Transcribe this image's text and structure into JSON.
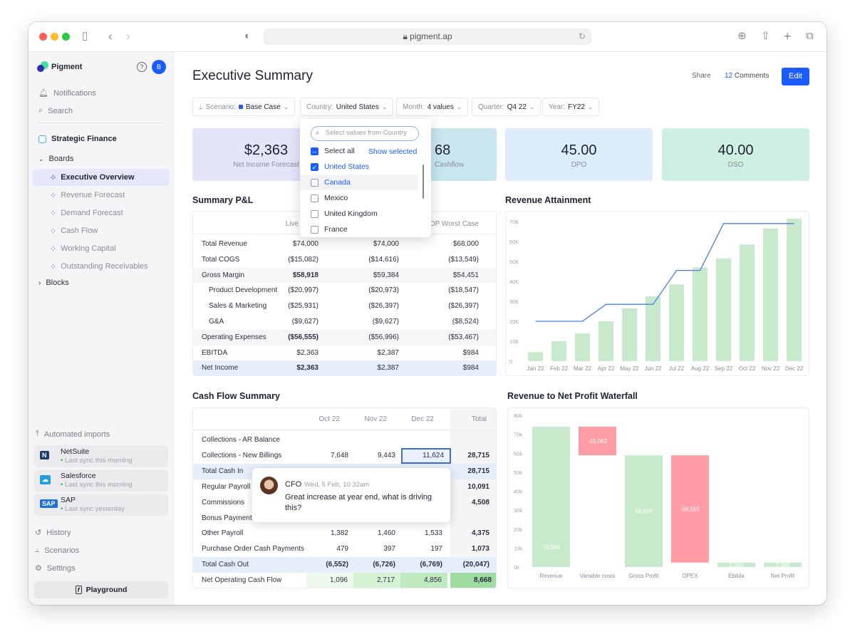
{
  "browser": {
    "url": "pigment.ap"
  },
  "sidebar": {
    "app_name": "Pigment",
    "avatar_initial": "B",
    "notifications": "Notifications",
    "search": "Search",
    "workspace": "Strategic Finance",
    "boards_label": "Boards",
    "boards": [
      "Executive Overview",
      "Revenue Forecast",
      "Demand Forecast",
      "Cash Flow",
      "Working Capital",
      "Outstanding Receivables"
    ],
    "blocks_label": "Blocks",
    "imports_label": "Automated imports",
    "imports": [
      {
        "name": "NetSuite",
        "status": "Last sync this morning"
      },
      {
        "name": "Salesforce",
        "status": "Last sync this morning"
      },
      {
        "name": "SAP",
        "status": "Last sync yesterday"
      }
    ],
    "history": "History",
    "scenarios": "Scenarios",
    "settings": "Settings",
    "playground": "Playground"
  },
  "header": {
    "title": "Executive Summary",
    "share": "Share",
    "comments_count": "12",
    "comments_label": "Comments",
    "edit": "Edit"
  },
  "filters": [
    {
      "label": "Scenario:",
      "value": "Base Case"
    },
    {
      "label": "Country:",
      "value": "United States"
    },
    {
      "label": "Month:",
      "value": "4 values"
    },
    {
      "label": "Quarter:",
      "value": "Q4 22"
    },
    {
      "label": "Year:",
      "value": "FY22"
    }
  ],
  "kpis": [
    {
      "value": "$2,363",
      "label": "Net Income Forecast",
      "color": "#e4e4fb"
    },
    {
      "value": "68",
      "label": "Cashflow",
      "color": "#c9e6ee"
    },
    {
      "value": "45.00",
      "label": "DPO",
      "color": "#dcecfc"
    },
    {
      "value": "40.00",
      "label": "DSO",
      "color": "#cdf0e3"
    }
  ],
  "country_dropdown": {
    "placeholder": "Select values from Country",
    "select_all": "Select all",
    "show_selected": "Show selected",
    "options": [
      {
        "label": "United States",
        "checked": true
      },
      {
        "label": "Canada",
        "checked": false
      },
      {
        "label": "Mexico",
        "checked": false
      },
      {
        "label": "United Kingdom",
        "checked": false
      },
      {
        "label": "France",
        "checked": false
      }
    ]
  },
  "pnl": {
    "title": "Summary P&L",
    "columns": [
      "Live",
      "",
      "AOP Worst Case"
    ],
    "rows": [
      {
        "label": "Total Revenue",
        "values": [
          "$74,000",
          "$74,000",
          "$68,000"
        ],
        "style": ""
      },
      {
        "label": "Total COGS",
        "values": [
          "($15,082)",
          "($14,616)",
          "($13,549)"
        ],
        "style": ""
      },
      {
        "label": "Gross Margin",
        "values": [
          "$58,918",
          "$59,384",
          "$54,451"
        ],
        "style": "sub"
      },
      {
        "label": "Product Development",
        "values": [
          "($20,997)",
          "($20,973)",
          "($18,547)"
        ],
        "style": "indent"
      },
      {
        "label": "Sales & Marketing",
        "values": [
          "($25,931)",
          "($26,397)",
          "($26,397)"
        ],
        "style": "indent"
      },
      {
        "label": "G&A",
        "values": [
          "($9,627)",
          "($9,627)",
          "($8,524)"
        ],
        "style": "indent"
      },
      {
        "label": "Operating Expenses",
        "values": [
          "($56,555)",
          "($56,996)",
          "($53,467)"
        ],
        "style": "sub"
      },
      {
        "label": "EBITDA",
        "values": [
          "$2,363",
          "$2,387",
          "$984"
        ],
        "style": ""
      },
      {
        "label": "Net Income",
        "values": [
          "$2,363",
          "$2,387",
          "$984"
        ],
        "style": "total"
      }
    ]
  },
  "cashflow": {
    "title": "Cash Flow Summary",
    "columns": [
      "Oct 22",
      "Nov 22",
      "Dec 22",
      "Total"
    ],
    "rows": [
      {
        "label": "Collections - AR Balance",
        "values": [
          "",
          "",
          "",
          ""
        ],
        "style": ""
      },
      {
        "label": "Collections - New Billings",
        "values": [
          "7,648",
          "9,443",
          "11,624",
          "28,715"
        ],
        "style": ""
      },
      {
        "label": "Total Cash In",
        "values": [
          "",
          "",
          "",
          "28,715"
        ],
        "style": "total"
      },
      {
        "label": "Regular Payroll",
        "values": [
          "",
          "",
          "",
          "10,091"
        ],
        "style": ""
      },
      {
        "label": "Commissions",
        "values": [
          "",
          "",
          "",
          "4,508"
        ],
        "style": ""
      },
      {
        "label": "Bonus Payment",
        "values": [
          "",
          "",
          "",
          ""
        ],
        "style": ""
      },
      {
        "label": "Other Payroll",
        "values": [
          "1,382",
          "1,460",
          "1,533",
          "4,375"
        ],
        "style": ""
      },
      {
        "label": "Purchase Order Cash Payments",
        "values": [
          "479",
          "397",
          "197",
          "1,073"
        ],
        "style": ""
      },
      {
        "label": "Total Cash Out",
        "values": [
          "(6,552)",
          "(6,726)",
          "(6,769)",
          "(20,047)"
        ],
        "style": "total"
      },
      {
        "label": "Net Operating Cash Flow",
        "values": [
          "1,096",
          "2,717",
          "4,856",
          "8,668"
        ],
        "style": "net"
      }
    ]
  },
  "comment": {
    "author": "CFO",
    "time": "Wed, 5 Feb, 10:32am",
    "text": "Great increase at year end, what is driving this?"
  },
  "chart_data": [
    {
      "type": "bar",
      "title": "Revenue Attainment",
      "categories": [
        "Jan 22",
        "Feb 22",
        "Mar 22",
        "Apr 22",
        "May 22",
        "Jun 22",
        "Jul 22",
        "Aug 22",
        "Sep 22",
        "Oct 22",
        "Nov 22",
        "Dec 22"
      ],
      "series": [
        {
          "name": "Revenue",
          "type": "bar",
          "color": "#c9e9cc",
          "values": [
            4500,
            10000,
            14000,
            20000,
            26500,
            32500,
            38500,
            47000,
            51500,
            58500,
            66500,
            71500
          ]
        },
        {
          "name": "Target",
          "type": "line",
          "color": "#4a7fdc",
          "values": [
            20000,
            20000,
            20000,
            28500,
            28500,
            28500,
            45500,
            45500,
            69000,
            69000,
            69000,
            69000
          ]
        }
      ],
      "yticks": [
        "0",
        "10K",
        "20K",
        "30K",
        "40K",
        "50K",
        "60K",
        "70K"
      ],
      "ylim": [
        0,
        70000
      ]
    },
    {
      "type": "waterfall",
      "title": "Revenue to Net Profit Waterfall",
      "categories": [
        "Revenue",
        "Variable costs",
        "Gross Profit",
        "OPEX",
        "Ebitda",
        "Net Profit"
      ],
      "values": [
        74000,
        -15082,
        58918,
        -56555,
        2363,
        2363
      ],
      "labels": [
        "74,000",
        "-15,082",
        "58,918",
        "-56,555",
        "2,363",
        "2,363"
      ],
      "kinds": [
        "total",
        "delta",
        "total",
        "delta",
        "total",
        "total"
      ],
      "yticks": [
        "0k",
        "10k",
        "20k",
        "30k",
        "40k",
        "50k",
        "60k",
        "70k",
        "80k"
      ],
      "ylim": [
        0,
        80000
      ],
      "colors": {
        "positive": "#c9e9cc",
        "negative": "#ff9ca4"
      }
    }
  ]
}
